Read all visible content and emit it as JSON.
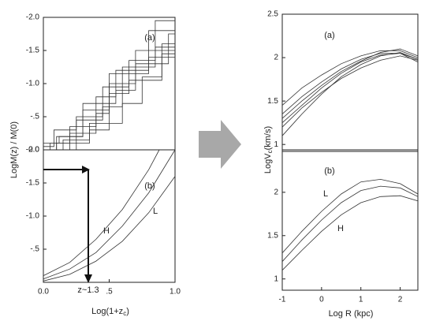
{
  "chart_data": [
    {
      "type": "line",
      "ylabel": "LogM(z) / M(0)",
      "xlim": [
        0,
        1.0
      ],
      "ylim": [
        0,
        -2.0
      ],
      "yticks": [
        {
          "value": 0,
          "label": "0.0"
        },
        {
          "value": -0.5,
          "label": "-.5"
        },
        {
          "value": -1.0,
          "label": "-1.0"
        },
        {
          "value": -1.5,
          "label": "-1.5"
        },
        {
          "value": -2.0,
          "label": "-2.0"
        }
      ],
      "annotations": [
        "(a)"
      ],
      "color": "#333333",
      "series": [
        {
          "x": [
            0,
            0.1,
            0.1,
            0.3,
            0.3,
            0.5,
            0.5,
            0.7,
            0.7,
            1.0
          ],
          "values": [
            0,
            0,
            -0.2,
            -0.2,
            -0.6,
            -0.6,
            -1.0,
            -1.0,
            -1.5,
            -1.5
          ]
        },
        {
          "x": [
            0,
            0.05,
            0.05,
            0.2,
            0.2,
            0.4,
            0.4,
            0.55,
            0.55,
            0.8,
            0.8,
            1.0
          ],
          "values": [
            0,
            0,
            -0.1,
            -0.1,
            -0.35,
            -0.35,
            -0.8,
            -0.8,
            -1.2,
            -1.2,
            -1.8,
            -1.8
          ]
        },
        {
          "x": [
            0,
            0.15,
            0.15,
            0.35,
            0.35,
            0.6,
            0.6,
            0.75,
            0.75,
            0.9,
            0.9,
            1.0
          ],
          "values": [
            0,
            0,
            -0.15,
            -0.15,
            -0.4,
            -0.4,
            -0.7,
            -0.7,
            -1.1,
            -1.1,
            -1.6,
            -1.6
          ]
        },
        {
          "x": [
            0,
            0.08,
            0.08,
            0.25,
            0.25,
            0.45,
            0.45,
            0.65,
            0.65,
            0.85,
            0.85,
            1.0
          ],
          "values": [
            -0.05,
            -0.05,
            -0.3,
            -0.3,
            -0.5,
            -0.5,
            -0.95,
            -0.95,
            -1.35,
            -1.35,
            -1.95,
            -1.95
          ]
        },
        {
          "x": [
            0,
            0.2,
            0.2,
            0.4,
            0.4,
            0.5,
            0.5,
            0.8,
            0.8,
            1.0
          ],
          "values": [
            0,
            0,
            -0.25,
            -0.25,
            -0.55,
            -0.55,
            -1.15,
            -1.15,
            -1.4,
            -1.4
          ]
        },
        {
          "x": [
            0,
            0.12,
            0.12,
            0.3,
            0.3,
            0.55,
            0.55,
            0.7,
            0.7,
            0.95,
            0.95,
            1.0
          ],
          "values": [
            -0.1,
            -0.1,
            -0.2,
            -0.2,
            -0.7,
            -0.7,
            -0.9,
            -0.9,
            -1.3,
            -1.3,
            -1.75,
            -1.75
          ]
        },
        {
          "x": [
            0,
            0.25,
            0.25,
            0.45,
            0.45,
            0.6,
            0.6,
            0.85,
            0.85,
            1.0
          ],
          "values": [
            0,
            0,
            -0.45,
            -0.45,
            -0.65,
            -0.65,
            -1.25,
            -1.25,
            -1.55,
            -1.55
          ]
        },
        {
          "x": [
            0,
            0.1,
            0.1,
            0.35,
            0.35,
            0.5,
            0.5,
            0.65,
            0.65,
            0.9,
            0.9,
            1.0
          ],
          "values": [
            0,
            0,
            -0.1,
            -0.1,
            -0.3,
            -0.3,
            -0.85,
            -0.85,
            -1.05,
            -1.05,
            -1.45,
            -1.45
          ]
        }
      ]
    },
    {
      "type": "line",
      "xlabel": {
        "main": "Log(1+z",
        "sub": "c",
        "tail": ")"
      },
      "xlim": [
        0,
        1.0
      ],
      "ylim": [
        0,
        -2.0
      ],
      "xticks": [
        {
          "value": 0,
          "label": "0.0"
        },
        {
          "value": 0.5,
          "label": ".5"
        },
        {
          "value": 1.0,
          "label": "1.0"
        }
      ],
      "yticks": [
        {
          "value": -0.5,
          "label": "-.5"
        },
        {
          "value": -1.0,
          "label": "-1.0"
        },
        {
          "value": -1.5,
          "label": "-1.5"
        },
        {
          "value": -2.0,
          "label": "-2.0"
        }
      ],
      "annotations": [
        "(b)",
        "L",
        "H",
        "z~1.3"
      ],
      "color": "#333333",
      "series": [
        {
          "x": [
            0,
            0.2,
            0.4,
            0.6,
            0.8,
            1.0
          ],
          "values": [
            -0.02,
            -0.12,
            -0.32,
            -0.62,
            -1.05,
            -1.6
          ]
        },
        {
          "x": [
            0,
            0.2,
            0.4,
            0.6,
            0.8,
            1.0
          ],
          "values": [
            -0.05,
            -0.2,
            -0.45,
            -0.85,
            -1.35,
            -2.0
          ]
        },
        {
          "x": [
            0,
            0.2,
            0.4,
            0.6,
            0.8,
            0.88
          ],
          "values": [
            -0.1,
            -0.3,
            -0.65,
            -1.1,
            -1.7,
            -2.0
          ]
        }
      ]
    },
    {
      "type": "line",
      "ylabel": {
        "main": "LogV",
        "sub": "c",
        "tail": "(km/s)"
      },
      "xlim": [
        -1,
        2.45
      ],
      "ylim": [
        0.92,
        2.5
      ],
      "yticks": [
        1,
        1.5,
        2,
        2.5
      ],
      "annotations": [
        "(a)"
      ],
      "color": "#333333",
      "series": [
        {
          "x": [
            -1,
            -0.5,
            0,
            0.5,
            1,
            1.5,
            2,
            2.45
          ],
          "values": [
            1.35,
            1.55,
            1.72,
            1.87,
            1.98,
            2.05,
            2.05,
            1.98
          ]
        },
        {
          "x": [
            -1,
            -0.5,
            0,
            0.5,
            1,
            1.5,
            2,
            2.45
          ],
          "values": [
            1.25,
            1.45,
            1.65,
            1.82,
            1.95,
            2.03,
            2.05,
            1.95
          ]
        },
        {
          "x": [
            -1,
            -0.5,
            0,
            0.5,
            1,
            1.5,
            2,
            2.45
          ],
          "values": [
            1.1,
            1.35,
            1.58,
            1.78,
            1.92,
            2.02,
            2.06,
            1.98
          ]
        },
        {
          "x": [
            -1,
            -0.5,
            0,
            0.5,
            1,
            1.5,
            2,
            2.45
          ],
          "values": [
            1.45,
            1.65,
            1.8,
            1.93,
            2.02,
            2.08,
            2.08,
            2.0
          ]
        },
        {
          "x": [
            -1,
            -0.5,
            0,
            0.5,
            1,
            1.5,
            2,
            2.45
          ],
          "values": [
            1.2,
            1.42,
            1.6,
            1.76,
            1.88,
            1.97,
            2.02,
            1.97
          ]
        },
        {
          "x": [
            -1,
            -0.5,
            0,
            0.5,
            1,
            1.5,
            2,
            2.45
          ],
          "values": [
            1.3,
            1.5,
            1.68,
            1.84,
            1.96,
            2.06,
            2.1,
            2.02
          ]
        }
      ]
    },
    {
      "type": "line",
      "xlabel": "Log R (kpc)",
      "xlim": [
        -1,
        2.45
      ],
      "ylim": [
        0.87,
        2.49
      ],
      "xticks": [
        -1,
        0,
        1,
        2
      ],
      "yticks": [
        1,
        1.5,
        2
      ],
      "annotations": [
        "(b)",
        "L",
        "H"
      ],
      "color": "#333333",
      "series": [
        {
          "x": [
            -1,
            -0.5,
            0,
            0.5,
            1,
            1.5,
            2,
            2.45
          ],
          "values": [
            1.3,
            1.55,
            1.78,
            1.98,
            2.12,
            2.15,
            2.1,
            1.98
          ]
        },
        {
          "x": [
            -1,
            -0.5,
            0,
            0.5,
            1,
            1.5,
            2,
            2.45
          ],
          "values": [
            1.2,
            1.45,
            1.68,
            1.88,
            2.02,
            2.07,
            2.05,
            1.95
          ]
        },
        {
          "x": [
            -1,
            -0.5,
            0,
            0.5,
            1,
            1.5,
            2,
            2.45
          ],
          "values": [
            1.1,
            1.33,
            1.55,
            1.74,
            1.88,
            1.95,
            1.96,
            1.9
          ]
        }
      ]
    }
  ]
}
